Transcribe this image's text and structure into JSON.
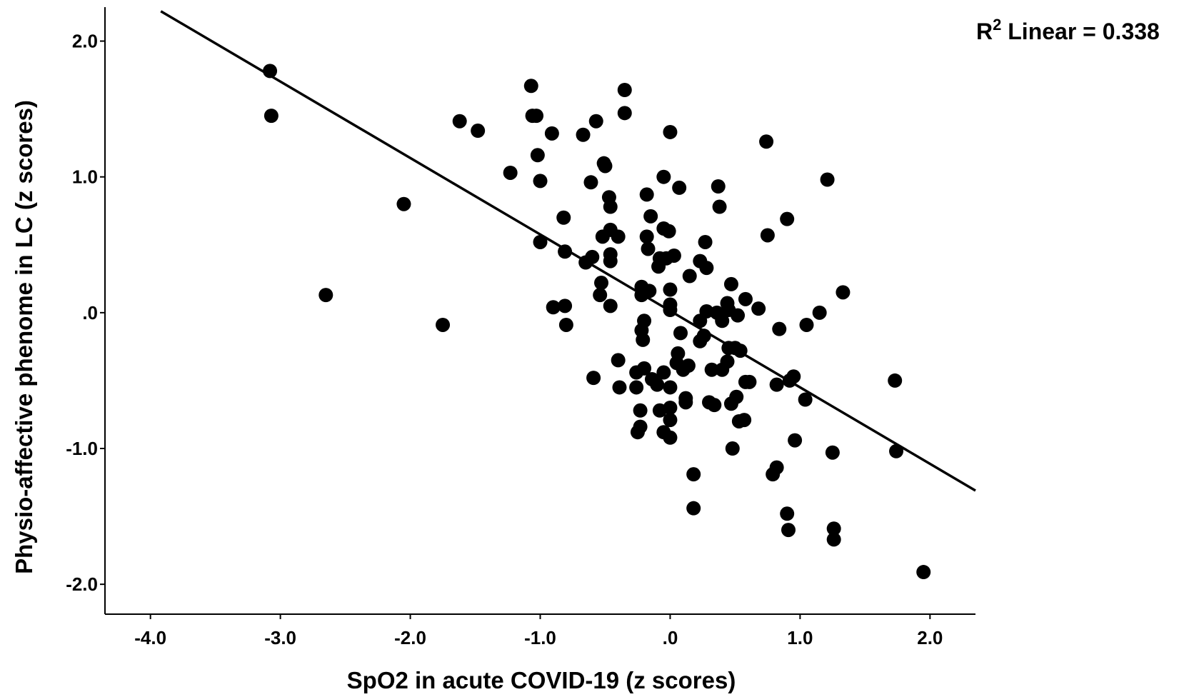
{
  "chart_data": {
    "type": "scatter",
    "title": "",
    "xlabel": "SpO2 in acute COVID-19 (z scores)",
    "ylabel": "Physio-affective phenome in LC (z scores)",
    "xlim": [
      -4.35,
      2.35
    ],
    "ylim": [
      -2.22,
      2.25
    ],
    "xticks": [
      -4,
      -3,
      -2,
      -1,
      0,
      1,
      2
    ],
    "xtick_labels": [
      "-4.0",
      "-3.0",
      "-2.0",
      "-1.0",
      ".0",
      "1.0",
      "2.0"
    ],
    "yticks": [
      -2,
      -1,
      0,
      1,
      2
    ],
    "ytick_labels": [
      "-2.0",
      "-1.0",
      ".0",
      "1.0",
      "2.0"
    ],
    "grid": false,
    "fit_line": {
      "type": "linear",
      "x": [
        -3.92,
        2.35
      ],
      "y": [
        2.22,
        -1.31
      ]
    },
    "r2_annotation": {
      "prefix": "R",
      "superscript": "2",
      "text": " Linear = 0.338"
    },
    "point_color": "#000000",
    "points": [
      [
        -3.08,
        1.78
      ],
      [
        -3.07,
        1.45
      ],
      [
        -2.65,
        0.13
      ],
      [
        -2.05,
        0.8
      ],
      [
        -1.75,
        -0.09
      ],
      [
        -1.62,
        1.41
      ],
      [
        -1.48,
        1.34
      ],
      [
        -1.23,
        1.03
      ],
      [
        -1.07,
        1.67
      ],
      [
        -1.06,
        1.45
      ],
      [
        -1.03,
        1.45
      ],
      [
        -1.02,
        1.16
      ],
      [
        -1.0,
        0.97
      ],
      [
        -1.0,
        0.52
      ],
      [
        -0.91,
        1.32
      ],
      [
        -0.9,
        0.04
      ],
      [
        -0.82,
        0.7
      ],
      [
        -0.81,
        0.45
      ],
      [
        -0.81,
        0.05
      ],
      [
        -0.8,
        -0.09
      ],
      [
        -0.67,
        1.31
      ],
      [
        -0.65,
        0.37
      ],
      [
        -0.61,
        0.96
      ],
      [
        -0.6,
        0.41
      ],
      [
        -0.59,
        -0.48
      ],
      [
        -0.57,
        1.41
      ],
      [
        -0.54,
        0.13
      ],
      [
        -0.53,
        0.22
      ],
      [
        -0.52,
        0.56
      ],
      [
        -0.51,
        1.1
      ],
      [
        -0.5,
        1.08
      ],
      [
        -0.47,
        0.85
      ],
      [
        -0.46,
        0.78
      ],
      [
        -0.46,
        0.61
      ],
      [
        -0.46,
        0.43
      ],
      [
        -0.46,
        0.38
      ],
      [
        -0.46,
        0.05
      ],
      [
        -0.4,
        0.56
      ],
      [
        -0.4,
        -0.35
      ],
      [
        -0.39,
        -0.55
      ],
      [
        -0.35,
        1.64
      ],
      [
        -0.35,
        1.47
      ],
      [
        -0.26,
        -0.44
      ],
      [
        -0.26,
        -0.55
      ],
      [
        -0.25,
        -0.88
      ],
      [
        -0.23,
        -0.72
      ],
      [
        -0.23,
        -0.84
      ],
      [
        -0.22,
        0.19
      ],
      [
        -0.22,
        0.13
      ],
      [
        -0.22,
        -0.13
      ],
      [
        -0.21,
        -0.2
      ],
      [
        -0.2,
        -0.41
      ],
      [
        -0.2,
        -0.06
      ],
      [
        -0.18,
        0.87
      ],
      [
        -0.18,
        0.56
      ],
      [
        -0.17,
        0.47
      ],
      [
        -0.16,
        0.16
      ],
      [
        -0.15,
        0.71
      ],
      [
        -0.14,
        -0.49
      ],
      [
        -0.1,
        -0.53
      ],
      [
        -0.09,
        0.34
      ],
      [
        -0.08,
        0.4
      ],
      [
        -0.08,
        -0.72
      ],
      [
        -0.05,
        1.0
      ],
      [
        -0.05,
        0.62
      ],
      [
        -0.05,
        -0.44
      ],
      [
        -0.05,
        -0.88
      ],
      [
        -0.03,
        0.4
      ],
      [
        -0.01,
        0.6
      ],
      [
        0.0,
        1.33
      ],
      [
        0.0,
        0.17
      ],
      [
        0.0,
        0.06
      ],
      [
        0.0,
        0.02
      ],
      [
        0.0,
        -0.55
      ],
      [
        0.0,
        -0.7
      ],
      [
        0.0,
        -0.79
      ],
      [
        0.0,
        -0.92
      ],
      [
        0.03,
        0.42
      ],
      [
        0.05,
        -0.37
      ],
      [
        0.06,
        -0.3
      ],
      [
        0.07,
        0.92
      ],
      [
        0.08,
        -0.15
      ],
      [
        0.1,
        -0.42
      ],
      [
        0.12,
        -0.63
      ],
      [
        0.12,
        -0.66
      ],
      [
        0.14,
        -0.39
      ],
      [
        0.15,
        0.27
      ],
      [
        0.18,
        -1.19
      ],
      [
        0.18,
        -1.44
      ],
      [
        0.23,
        -0.06
      ],
      [
        0.23,
        -0.21
      ],
      [
        0.23,
        0.38
      ],
      [
        0.26,
        -0.17
      ],
      [
        0.27,
        0.52
      ],
      [
        0.28,
        0.33
      ],
      [
        0.28,
        0.01
      ],
      [
        0.3,
        -0.66
      ],
      [
        0.32,
        -0.42
      ],
      [
        0.34,
        -0.68
      ],
      [
        0.36,
        0.0
      ],
      [
        0.37,
        0.93
      ],
      [
        0.38,
        0.78
      ],
      [
        0.4,
        -0.06
      ],
      [
        0.4,
        -0.42
      ],
      [
        0.44,
        -0.36
      ],
      [
        0.44,
        0.07
      ],
      [
        0.45,
        0.02
      ],
      [
        0.45,
        -0.26
      ],
      [
        0.47,
        0.21
      ],
      [
        0.47,
        -0.67
      ],
      [
        0.48,
        -1.0
      ],
      [
        0.5,
        -0.26
      ],
      [
        0.51,
        -0.62
      ],
      [
        0.52,
        -0.02
      ],
      [
        0.53,
        -0.8
      ],
      [
        0.54,
        -0.28
      ],
      [
        0.57,
        -0.79
      ],
      [
        0.58,
        0.1
      ],
      [
        0.58,
        -0.51
      ],
      [
        0.61,
        -0.51
      ],
      [
        0.68,
        0.03
      ],
      [
        0.74,
        1.26
      ],
      [
        0.75,
        0.57
      ],
      [
        0.79,
        -1.19
      ],
      [
        0.82,
        -1.14
      ],
      [
        0.82,
        -0.53
      ],
      [
        0.84,
        -0.12
      ],
      [
        0.9,
        0.69
      ],
      [
        0.9,
        -1.48
      ],
      [
        0.91,
        -1.6
      ],
      [
        0.92,
        -0.5
      ],
      [
        0.95,
        -0.47
      ],
      [
        0.96,
        -0.94
      ],
      [
        1.04,
        -0.64
      ],
      [
        1.05,
        -0.09
      ],
      [
        1.15,
        0.0
      ],
      [
        1.21,
        0.98
      ],
      [
        1.25,
        -1.03
      ],
      [
        1.26,
        -1.59
      ],
      [
        1.26,
        -1.67
      ],
      [
        1.33,
        0.15
      ],
      [
        1.73,
        -0.5
      ],
      [
        1.74,
        -1.02
      ],
      [
        1.95,
        -1.91
      ]
    ]
  }
}
